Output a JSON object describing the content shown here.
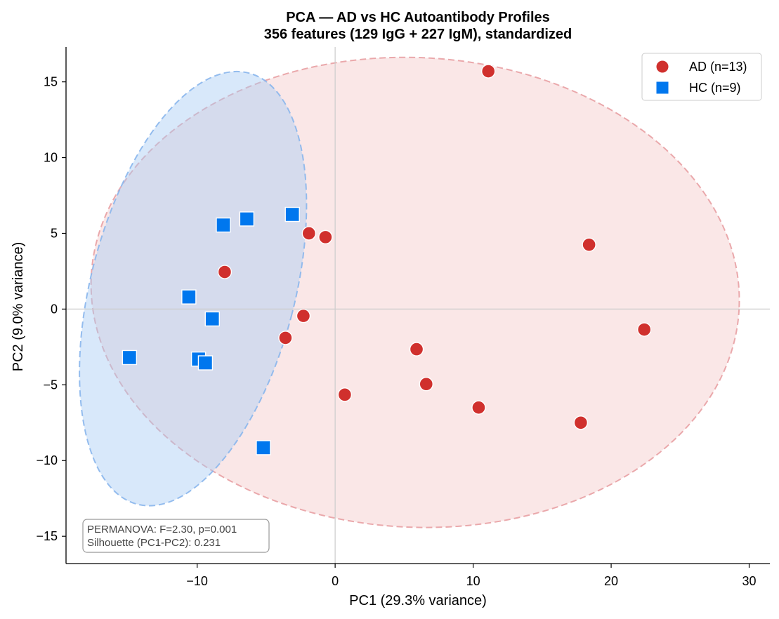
{
  "chart_data": {
    "type": "scatter",
    "title": "PCA — AD vs HC Autoantibody Profiles",
    "subtitle": "356 features (129 IgG + 227 IgM), standardized",
    "xlabel": "PC1 (29.3% variance)",
    "ylabel": "PC2 (9.0% variance)",
    "xlim": [
      -19.5,
      31.5
    ],
    "ylim": [
      -16.8,
      17.3
    ],
    "x_ticks": [
      -10,
      0,
      10,
      20,
      30
    ],
    "y_ticks": [
      -15,
      -10,
      -5,
      0,
      5,
      10,
      15
    ],
    "x_tick_labels": [
      "−10",
      "0",
      "10",
      "20",
      "30"
    ],
    "y_tick_labels": [
      "−15",
      "−10",
      "−5",
      "0",
      "5",
      "10",
      "15"
    ],
    "reference_lines": {
      "x": 0,
      "y": 0
    },
    "grid": false,
    "legend_position": "top-right",
    "series": [
      {
        "name": "AD (n=13)",
        "marker": "circle",
        "color": "#d0302d",
        "points": [
          {
            "x": 11.1,
            "y": 15.7
          },
          {
            "x": 18.4,
            "y": 4.25
          },
          {
            "x": 22.4,
            "y": -1.35
          },
          {
            "x": -1.9,
            "y": 5.0
          },
          {
            "x": -0.7,
            "y": 4.75
          },
          {
            "x": -8.0,
            "y": 2.45
          },
          {
            "x": -2.3,
            "y": -0.45
          },
          {
            "x": -3.6,
            "y": -1.9
          },
          {
            "x": 5.9,
            "y": -2.65
          },
          {
            "x": 6.6,
            "y": -4.95
          },
          {
            "x": 0.7,
            "y": -5.65
          },
          {
            "x": 10.4,
            "y": -6.5
          },
          {
            "x": 17.8,
            "y": -7.5
          }
        ]
      },
      {
        "name": "HC (n=9)",
        "marker": "square",
        "color": "#0077ee",
        "points": [
          {
            "x": -8.1,
            "y": 5.55
          },
          {
            "x": -6.4,
            "y": 5.95
          },
          {
            "x": -3.1,
            "y": 6.25
          },
          {
            "x": -10.6,
            "y": 0.8
          },
          {
            "x": -8.9,
            "y": -0.65
          },
          {
            "x": -14.9,
            "y": -3.2
          },
          {
            "x": -9.9,
            "y": -3.3
          },
          {
            "x": -9.4,
            "y": -3.55
          },
          {
            "x": -5.2,
            "y": -9.15
          }
        ]
      }
    ],
    "confidence_ellipses": [
      {
        "series": "AD (n=13)",
        "fill": "#f4c9ca",
        "stroke": "#e8a0a3",
        "cx": 5.8,
        "cy": 1.1,
        "rx": 23.5,
        "ry": 15.5,
        "angle_deg": 2.9
      },
      {
        "series": "HC (n=9)",
        "fill": "#a9ccf4",
        "stroke": "#8ab6ec",
        "cx": -10.3,
        "cy": 1.35,
        "rx": 7.4,
        "ry": 14.7,
        "angle_deg": 14.5
      }
    ],
    "annotation": {
      "line1": "PERMANOVA: F=2.30, p=0.001",
      "line2": "Silhouette (PC1-PC2): 0.231",
      "position": "bottom-left"
    }
  }
}
